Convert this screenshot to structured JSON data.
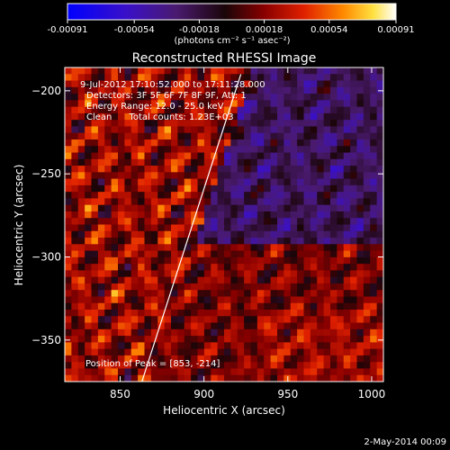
{
  "colorbar": {
    "ticks": [
      "-0.00091",
      "-0.00054",
      "-0.00018",
      "0.00018",
      "0.00054",
      "0.00091"
    ],
    "tick_values": [
      -0.00091,
      -0.00054,
      -0.00018,
      0.00018,
      0.00054,
      0.00091
    ],
    "range": [
      -0.00091,
      0.00091
    ],
    "units": "(photons cm⁻² s⁻¹ asec⁻²)"
  },
  "chart_data": {
    "type": "heatmap",
    "title": "Reconstructed RHESSI Image",
    "xlabel": "Heliocentric X (arcsec)",
    "ylabel": "Heliocentric Y (arcsec)",
    "xlim": [
      817,
      1007
    ],
    "ylim": [
      -375,
      -186
    ],
    "xticks": [
      850,
      900,
      950,
      1000
    ],
    "yticks": [
      -200,
      -250,
      -300,
      -350
    ],
    "xtick_labels": [
      "850",
      "900",
      "950",
      "1000"
    ],
    "ytick_labels": [
      "−200",
      "−250",
      "−300",
      "−350"
    ],
    "colormap": "blue-purple-black-red-orange-yellow-white",
    "limb_line": {
      "x": [
        863,
        922
      ],
      "y": [
        -375,
        -190
      ],
      "color": "#ffffff"
    },
    "annotations": [
      "9-Jul-2012 17:10:52.000 to 17:11:28.000",
      "Detectors: 3F 5F 6F 7F 8F 9F, Att: 1",
      "Energy Range: 12.0 - 25.0 keV",
      "Clean      Total counts: 1.23E+03"
    ],
    "peak_label": "Position of Peak = [853, -214]"
  },
  "footer": {
    "timestamp": "2-May-2014 00:09"
  }
}
